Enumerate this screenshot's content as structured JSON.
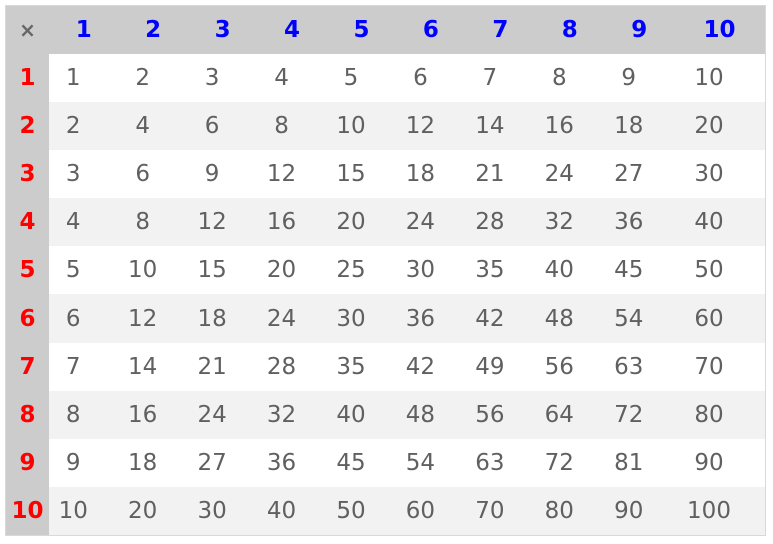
{
  "corner_symbol": "×",
  "colors": {
    "header_bg": "#cccccc",
    "column_header": "#0000ff",
    "row_header": "#ff0000",
    "cell_text": "#606060",
    "stripe": "#f2f2f2"
  },
  "column_headers": [
    "1",
    "2",
    "3",
    "4",
    "5",
    "6",
    "7",
    "8",
    "9",
    "10"
  ],
  "rows": [
    {
      "header": "1",
      "cells": [
        "1",
        "2",
        "3",
        "4",
        "5",
        "6",
        "7",
        "8",
        "9",
        "10"
      ]
    },
    {
      "header": "2",
      "cells": [
        "2",
        "4",
        "6",
        "8",
        "10",
        "12",
        "14",
        "16",
        "18",
        "20"
      ]
    },
    {
      "header": "3",
      "cells": [
        "3",
        "6",
        "9",
        "12",
        "15",
        "18",
        "21",
        "24",
        "27",
        "30"
      ]
    },
    {
      "header": "4",
      "cells": [
        "4",
        "8",
        "12",
        "16",
        "20",
        "24",
        "28",
        "32",
        "36",
        "40"
      ]
    },
    {
      "header": "5",
      "cells": [
        "5",
        "10",
        "15",
        "20",
        "25",
        "30",
        "35",
        "40",
        "45",
        "50"
      ]
    },
    {
      "header": "6",
      "cells": [
        "6",
        "12",
        "18",
        "24",
        "30",
        "36",
        "42",
        "48",
        "54",
        "60"
      ]
    },
    {
      "header": "7",
      "cells": [
        "7",
        "14",
        "21",
        "28",
        "35",
        "42",
        "49",
        "56",
        "63",
        "70"
      ]
    },
    {
      "header": "8",
      "cells": [
        "8",
        "16",
        "24",
        "32",
        "40",
        "48",
        "56",
        "64",
        "72",
        "80"
      ]
    },
    {
      "header": "9",
      "cells": [
        "9",
        "18",
        "27",
        "36",
        "45",
        "54",
        "63",
        "72",
        "81",
        "90"
      ]
    },
    {
      "header": "10",
      "cells": [
        "10",
        "20",
        "30",
        "40",
        "50",
        "60",
        "70",
        "80",
        "90",
        "100"
      ]
    }
  ]
}
